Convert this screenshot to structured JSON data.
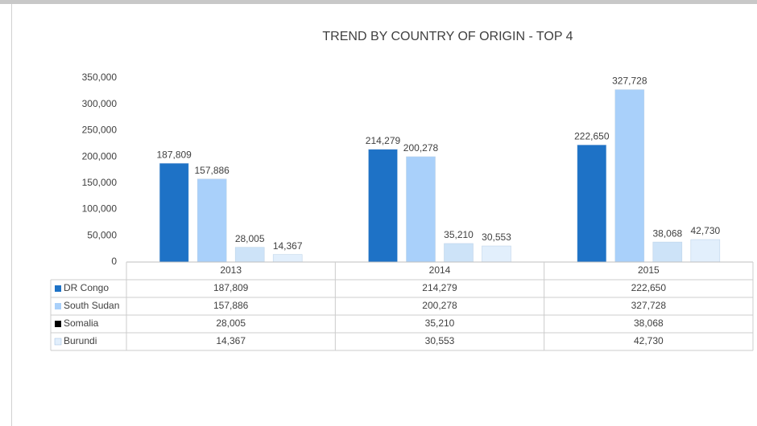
{
  "chart_data": {
    "type": "bar",
    "title": "TREND BY  COUNTRY OF ORIGIN - TOP 4",
    "categories": [
      "2013",
      "2014",
      "2015"
    ],
    "series": [
      {
        "name": "DR Congo",
        "color": "#1e72c6",
        "marker_color": "#1e72c6",
        "values": [
          187809,
          214279,
          222650
        ],
        "value_labels": [
          "187,809",
          "214,279",
          "222,650"
        ]
      },
      {
        "name": "South Sudan",
        "color": "#a9d0fa",
        "marker_color": "#a9d0fa",
        "values": [
          157886,
          200278,
          327728
        ],
        "value_labels": [
          "157,886",
          "200,278",
          "327,728"
        ]
      },
      {
        "name": "Somalia",
        "color": "#cde3f8",
        "marker_color": "#000000",
        "values": [
          28005,
          35210,
          38068
        ],
        "value_labels": [
          "28,005",
          "35,210",
          "38,068"
        ]
      },
      {
        "name": "Burundi",
        "color": "#e2effc",
        "marker_color": "#e2effc",
        "values": [
          14367,
          30553,
          42730
        ],
        "value_labels": [
          "14,367",
          "30,553",
          "42,730"
        ]
      }
    ],
    "ylim": [
      0,
      350000
    ],
    "yticks": [
      0,
      {
        "value": 50000,
        "label": "50,000"
      },
      {
        "value": 100000,
        "label": "100,000"
      },
      {
        "value": 150000,
        "label": "150,000"
      },
      {
        "value": 200000,
        "label": "200,000"
      },
      {
        "value": 250000,
        "label": "250,000"
      },
      {
        "value": 300000,
        "label": "300,000"
      },
      {
        "value": 350000,
        "label": "350,000"
      }
    ],
    "grid": false
  }
}
